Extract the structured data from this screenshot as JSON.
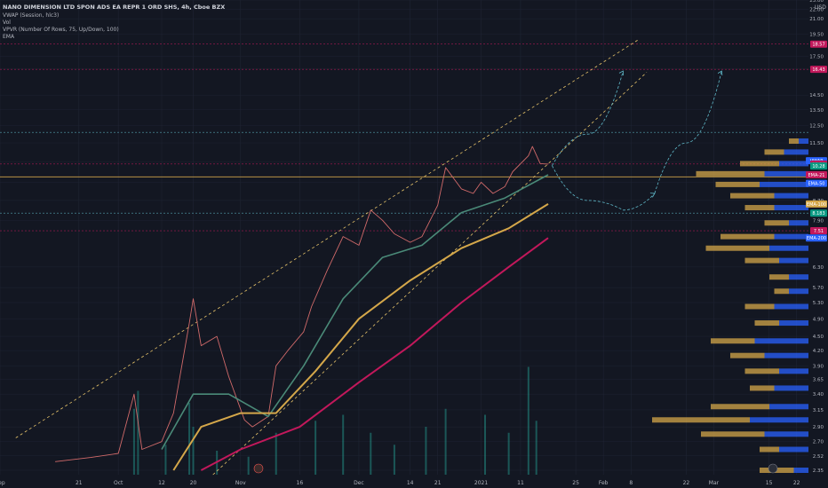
{
  "legend": {
    "title": "NANO DIMENSION LTD SPON ADS EA REPR 1 ORD SHS, 4h, Cboe BZX",
    "vwap": "VWAP (Session, hlc3)",
    "vol": "Vol",
    "vpvr": "VPVR (Number Of Rows, 75, Up/Down, 100)",
    "ema": "EMA"
  },
  "currency": "USD",
  "colors": {
    "background": "#131722",
    "grid": "#1f2433",
    "ema_short": "#4a8a78",
    "ema_mid": "#d4a74a",
    "ema_long": "#c2185b",
    "candle_up": "#26a69a",
    "candle_down": "#ef5350",
    "vp_up": "#2962ff",
    "vp_down": "#d4a74a",
    "channel": "#e6c36a",
    "projection": "#5fb8c8"
  },
  "y_axis_ticks": [
    "23.00",
    "22.00",
    "21.00",
    "19.50",
    "17.50",
    "16.50",
    "14.50",
    "13.50",
    "12.50",
    "11.50",
    "10.50",
    "9.50",
    "8.70",
    "7.90",
    "6.30",
    "5.70",
    "5.30",
    "4.90",
    "4.50",
    "4.20",
    "3.90",
    "3.65",
    "3.40",
    "3.15",
    "2.90",
    "2.70",
    "2.52",
    "2.35"
  ],
  "price_tags": [
    {
      "label": "18.57",
      "price": 18.57,
      "color": "#c2185b"
    },
    {
      "label": "16.43",
      "price": 16.43,
      "color": "#c2185b"
    },
    {
      "label": "VWAP",
      "price": 10.55,
      "color": "#2962ff"
    },
    {
      "label": "10.38",
      "price": 10.38,
      "color": "#c2185b"
    },
    {
      "label": "10.28",
      "price": 10.28,
      "color": "#089981"
    },
    {
      "label": "EMA-21",
      "price": 9.85,
      "color": "#c2185b"
    },
    {
      "label": "EMA-50",
      "price": 9.45,
      "color": "#2962ff"
    },
    {
      "label": "EMA-100",
      "price": 8.55,
      "color": "#d4a74a"
    },
    {
      "label": "8.183",
      "price": 8.18,
      "color": "#089981"
    },
    {
      "label": "7.51",
      "price": 7.51,
      "color": "#c2185b"
    },
    {
      "label": "EMA-200",
      "price": 7.25,
      "color": "#2962ff"
    }
  ],
  "x_axis_ticks": [
    {
      "label": "Sep",
      "date": "2020-09-01"
    },
    {
      "label": "21",
      "date": "2020-09-21"
    },
    {
      "label": "Oct",
      "date": "2020-10-01"
    },
    {
      "label": "12",
      "date": "2020-10-12"
    },
    {
      "label": "20",
      "date": "2020-10-20"
    },
    {
      "label": "Nov",
      "date": "2020-11-01"
    },
    {
      "label": "16",
      "date": "2020-11-16"
    },
    {
      "label": "Dec",
      "date": "2020-12-01"
    },
    {
      "label": "14",
      "date": "2020-12-14"
    },
    {
      "label": "21",
      "date": "2020-12-21"
    },
    {
      "label": "2021",
      "date": "2021-01-01"
    },
    {
      "label": "11",
      "date": "2021-01-11"
    },
    {
      "label": "25",
      "date": "2021-01-25"
    },
    {
      "label": "Feb",
      "date": "2021-02-01"
    },
    {
      "label": "8",
      "date": "2021-02-08"
    },
    {
      "label": "22",
      "date": "2021-02-22"
    },
    {
      "label": "Mar",
      "date": "2021-03-01"
    },
    {
      "label": "15",
      "date": "2021-03-15"
    },
    {
      "label": "22",
      "date": "2021-03-22"
    }
  ],
  "chart_data": {
    "type": "line",
    "title": "NANO DIMENSION LTD SPON ADS EA REPR 1 ORD SHS, 4h, Cboe BZX",
    "y_scale": "log",
    "ylim": [
      2.3,
      23
    ],
    "xlim": [
      "2020-09-01",
      "2021-03-25"
    ],
    "series": [
      {
        "key": "price",
        "points": [
          [
            "2020-09-15",
            2.45
          ],
          [
            "2020-09-24",
            2.5
          ],
          [
            "2020-10-01",
            2.55
          ],
          [
            "2020-10-05",
            3.4
          ],
          [
            "2020-10-07",
            2.6
          ],
          [
            "2020-10-12",
            2.7
          ],
          [
            "2020-10-15",
            3.1
          ],
          [
            "2020-10-19",
            4.8
          ],
          [
            "2020-10-20",
            5.4
          ],
          [
            "2020-10-22",
            4.3
          ],
          [
            "2020-10-26",
            4.5
          ],
          [
            "2020-10-29",
            3.7
          ],
          [
            "2020-11-02",
            3.0
          ],
          [
            "2020-11-04",
            2.9
          ],
          [
            "2020-11-08",
            3.05
          ],
          [
            "2020-11-10",
            3.9
          ],
          [
            "2020-11-13",
            4.2
          ],
          [
            "2020-11-17",
            4.6
          ],
          [
            "2020-11-19",
            5.2
          ],
          [
            "2020-11-23",
            6.2
          ],
          [
            "2020-11-27",
            7.3
          ],
          [
            "2020-12-01",
            7.0
          ],
          [
            "2020-12-04",
            8.3
          ],
          [
            "2020-12-07",
            7.9
          ],
          [
            "2020-12-10",
            7.4
          ],
          [
            "2020-12-14",
            7.1
          ],
          [
            "2020-12-17",
            7.3
          ],
          [
            "2020-12-21",
            8.5
          ],
          [
            "2020-12-23",
            10.2
          ],
          [
            "2020-12-27",
            9.2
          ],
          [
            "2020-12-30",
            9.0
          ],
          [
            "2021-01-01",
            9.5
          ],
          [
            "2021-01-04",
            9.0
          ],
          [
            "2021-01-07",
            9.3
          ],
          [
            "2021-01-09",
            10.0
          ],
          [
            "2021-01-13",
            10.8
          ],
          [
            "2021-01-14",
            11.3
          ],
          [
            "2021-01-16",
            10.4
          ],
          [
            "2021-01-18",
            10.38
          ]
        ]
      },
      {
        "key": "ema_short",
        "points": [
          [
            "2020-10-12",
            2.6
          ],
          [
            "2020-10-20",
            3.4
          ],
          [
            "2020-10-29",
            3.4
          ],
          [
            "2020-11-08",
            3.05
          ],
          [
            "2020-11-17",
            3.9
          ],
          [
            "2020-11-27",
            5.4
          ],
          [
            "2020-12-07",
            6.6
          ],
          [
            "2020-12-17",
            7.0
          ],
          [
            "2020-12-27",
            8.2
          ],
          [
            "2021-01-07",
            8.8
          ],
          [
            "2021-01-18",
            9.85
          ]
        ]
      },
      {
        "key": "ema_mid",
        "points": [
          [
            "2020-10-15",
            2.35
          ],
          [
            "2020-10-22",
            2.9
          ],
          [
            "2020-11-01",
            3.1
          ],
          [
            "2020-11-10",
            3.1
          ],
          [
            "2020-11-20",
            3.8
          ],
          [
            "2020-12-01",
            4.9
          ],
          [
            "2020-12-14",
            5.9
          ],
          [
            "2020-12-27",
            6.9
          ],
          [
            "2021-01-08",
            7.6
          ],
          [
            "2021-01-18",
            8.55
          ]
        ]
      },
      {
        "key": "ema_long",
        "points": [
          [
            "2020-10-22",
            2.35
          ],
          [
            "2020-11-01",
            2.6
          ],
          [
            "2020-11-16",
            2.9
          ],
          [
            "2020-12-01",
            3.6
          ],
          [
            "2020-12-14",
            4.3
          ],
          [
            "2020-12-27",
            5.3
          ],
          [
            "2021-01-08",
            6.3
          ],
          [
            "2021-01-18",
            7.25
          ]
        ]
      }
    ],
    "volume": [
      [
        "2020-10-05",
        0.55
      ],
      [
        "2020-10-06",
        0.7
      ],
      [
        "2020-10-13",
        0.25
      ],
      [
        "2020-10-19",
        0.6
      ],
      [
        "2020-10-20",
        0.4
      ],
      [
        "2020-10-26",
        0.2
      ],
      [
        "2020-11-03",
        0.15
      ],
      [
        "2020-11-10",
        0.35
      ],
      [
        "2020-11-20",
        0.45
      ],
      [
        "2020-11-27",
        0.5
      ],
      [
        "2020-12-04",
        0.35
      ],
      [
        "2020-12-10",
        0.25
      ],
      [
        "2020-12-18",
        0.4
      ],
      [
        "2020-12-23",
        0.55
      ],
      [
        "2021-01-02",
        0.5
      ],
      [
        "2021-01-08",
        0.35
      ],
      [
        "2021-01-13",
        0.9
      ],
      [
        "2021-01-15",
        0.45
      ]
    ],
    "channel_lines": [
      {
        "from": [
          "2020-09-05",
          2.75
        ],
        "to": [
          "2021-02-10",
          19.0
        ]
      },
      {
        "from": [
          "2020-10-25",
          2.3
        ],
        "to": [
          "2021-02-12",
          16.2
        ]
      }
    ],
    "horizontal_levels": [
      18.57,
      16.43,
      12.1,
      10.38,
      9.75,
      8.18,
      7.51
    ],
    "volume_profile": [
      {
        "price": 2.35,
        "up": 0.15,
        "down": 0.35
      },
      {
        "price": 2.6,
        "up": 0.3,
        "down": 0.2
      },
      {
        "price": 2.8,
        "up": 0.45,
        "down": 0.65
      },
      {
        "price": 3.0,
        "up": 0.6,
        "down": 1.0
      },
      {
        "price": 3.2,
        "up": 0.4,
        "down": 0.6
      },
      {
        "price": 3.5,
        "up": 0.35,
        "down": 0.25
      },
      {
        "price": 3.8,
        "up": 0.3,
        "down": 0.35
      },
      {
        "price": 4.1,
        "up": 0.45,
        "down": 0.35
      },
      {
        "price": 4.4,
        "up": 0.55,
        "down": 0.45
      },
      {
        "price": 4.8,
        "up": 0.3,
        "down": 0.25
      },
      {
        "price": 5.2,
        "up": 0.35,
        "down": 0.3
      },
      {
        "price": 5.6,
        "up": 0.2,
        "down": 0.15
      },
      {
        "price": 6.0,
        "up": 0.2,
        "down": 0.2
      },
      {
        "price": 6.5,
        "up": 0.3,
        "down": 0.35
      },
      {
        "price": 6.9,
        "up": 0.4,
        "down": 0.65
      },
      {
        "price": 7.3,
        "up": 0.35,
        "down": 0.55
      },
      {
        "price": 7.8,
        "up": 0.2,
        "down": 0.25
      },
      {
        "price": 8.4,
        "up": 0.35,
        "down": 0.3
      },
      {
        "price": 8.9,
        "up": 0.35,
        "down": 0.45
      },
      {
        "price": 9.4,
        "up": 0.5,
        "down": 0.45
      },
      {
        "price": 9.9,
        "up": 0.45,
        "down": 0.7
      },
      {
        "price": 10.4,
        "up": 0.3,
        "down": 0.4
      },
      {
        "price": 11.0,
        "up": 0.25,
        "down": 0.2
      },
      {
        "price": 11.6,
        "up": 0.1,
        "down": 0.1
      }
    ],
    "projections": [
      {
        "points": [
          [
            "2021-01-19",
            10.3
          ],
          [
            "2021-01-28",
            8.7
          ],
          [
            "2021-02-06",
            8.3
          ],
          [
            "2021-02-14",
            9.0
          ]
        ]
      },
      {
        "points": [
          [
            "2021-01-19",
            10.3
          ],
          [
            "2021-01-28",
            12.0
          ],
          [
            "2021-02-06",
            16.3
          ]
        ]
      },
      {
        "points": [
          [
            "2021-02-14",
            9.0
          ],
          [
            "2021-02-22",
            11.5
          ],
          [
            "2021-03-03",
            16.3
          ]
        ]
      }
    ]
  }
}
